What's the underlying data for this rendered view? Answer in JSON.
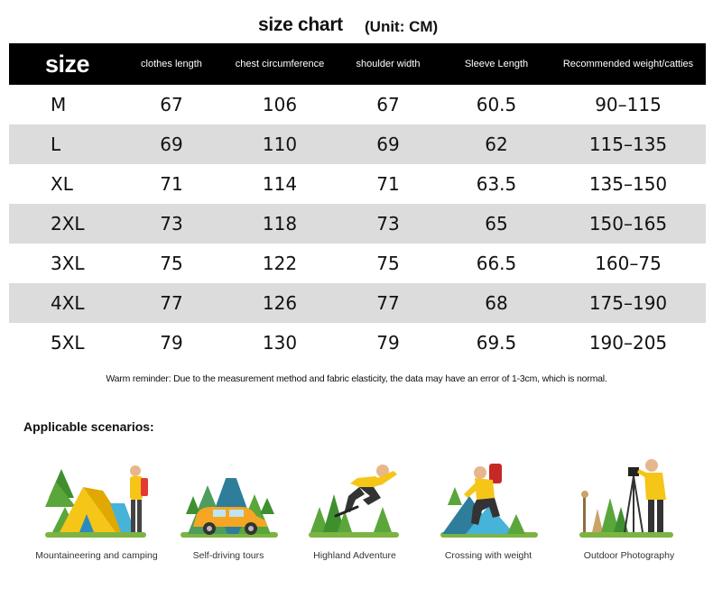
{
  "title": "size chart",
  "unit": "(Unit: CM)",
  "table": {
    "headers": [
      "size",
      "clothes length",
      "chest circumference",
      "shoulder width",
      "Sleeve Length",
      "Recommended weight/catties"
    ],
    "rows": [
      [
        "M",
        "67",
        "106",
        "67",
        "60.5",
        "90–115"
      ],
      [
        "L",
        "69",
        "110",
        "69",
        "62",
        "115–135"
      ],
      [
        "XL",
        "71",
        "114",
        "71",
        "63.5",
        "135–150"
      ],
      [
        "2XL",
        "73",
        "118",
        "73",
        "65",
        "150–165"
      ],
      [
        "3XL",
        "75",
        "122",
        "75",
        "66.5",
        "160–75"
      ],
      [
        "4XL",
        "77",
        "126",
        "77",
        "68",
        "175–190"
      ],
      [
        "5XL",
        "79",
        "130",
        "79",
        "69.5",
        "190–205"
      ]
    ]
  },
  "reminder": "Warm reminder: Due to the measurement method and fabric elasticity, the data may have an error of 1-3cm, which is normal.",
  "scenarios_title": "Applicable scenarios:",
  "scenarios": [
    {
      "label": "Mountaineering and camping",
      "icon": "camping-icon"
    },
    {
      "label": "Self-driving tours",
      "icon": "car-trip-icon"
    },
    {
      "label": "Highland Adventure",
      "icon": "jumping-adventure-icon"
    },
    {
      "label": "Crossing with weight",
      "icon": "hiker-backpack-icon"
    },
    {
      "label": "Outdoor Photography",
      "icon": "photographer-icon"
    }
  ],
  "colors": {
    "header_bg": "#000000",
    "shade_row": "#dcdcdc",
    "accent_yellow": "#f5c518",
    "tree_green": "#5aa63a",
    "ground_green": "#7cb342"
  }
}
